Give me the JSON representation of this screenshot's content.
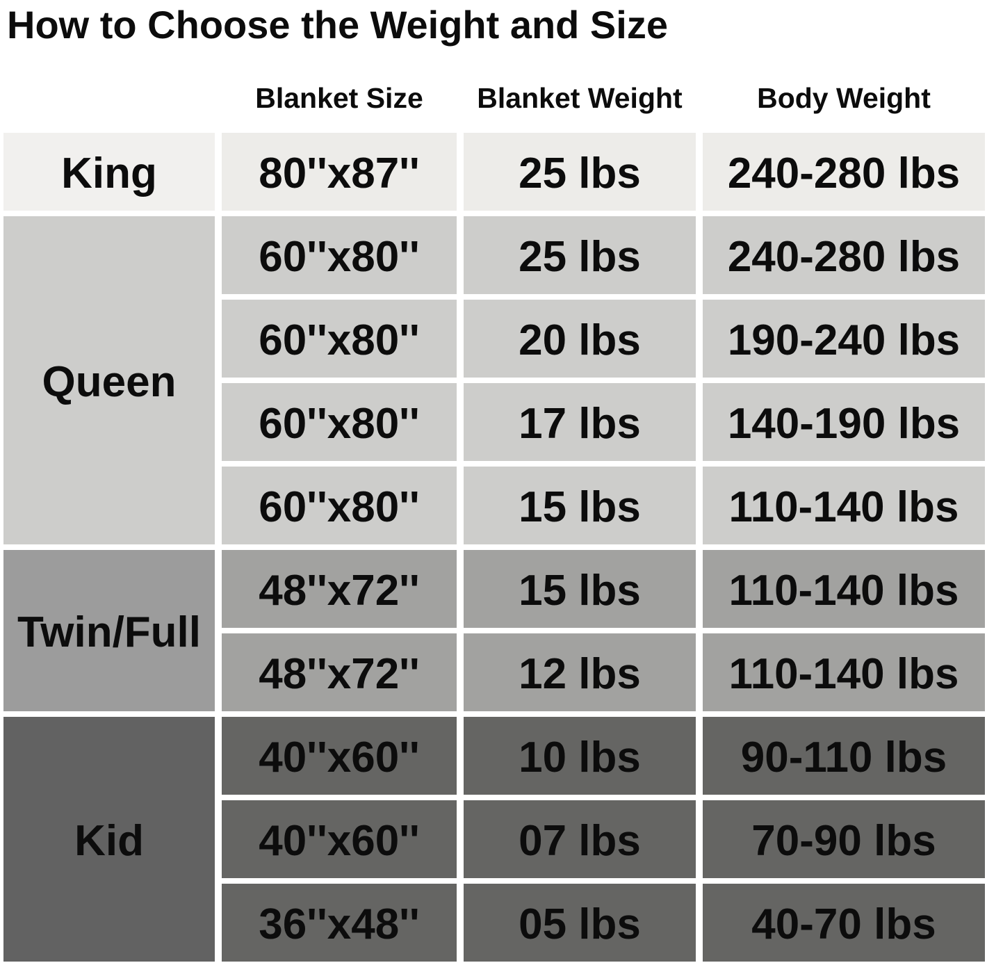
{
  "title": "How to Choose the Weight and Size",
  "columns": [
    "Blanket Size",
    "Blanket Weight",
    "Body Weight"
  ],
  "text_color": "#0c0c0c",
  "groups": [
    {
      "category": "King",
      "label_color": "#f1f0ee",
      "cell_color": "#edece9",
      "rows": [
        {
          "blanket_size": "80''x87''",
          "blanket_weight": "25 lbs",
          "body_weight": "240-280 lbs"
        }
      ]
    },
    {
      "category": "Queen",
      "label_color": "#cdcdcb",
      "cell_color": "#cdcdcb",
      "rows": [
        {
          "blanket_size": "60''x80''",
          "blanket_weight": "25 lbs",
          "body_weight": "240-280 lbs"
        },
        {
          "blanket_size": "60''x80''",
          "blanket_weight": "20 lbs",
          "body_weight": "190-240 lbs"
        },
        {
          "blanket_size": "60''x80''",
          "blanket_weight": "17 lbs",
          "body_weight": "140-190 lbs"
        },
        {
          "blanket_size": "60''x80''",
          "blanket_weight": "15 lbs",
          "body_weight": "110-140 lbs"
        }
      ]
    },
    {
      "category": "Twin/Full",
      "label_color": "#9c9c9c",
      "cell_color": "#a2a2a0",
      "rows": [
        {
          "blanket_size": "48''x72''",
          "blanket_weight": "15 lbs",
          "body_weight": "110-140 lbs"
        },
        {
          "blanket_size": "48''x72''",
          "blanket_weight": "12 lbs",
          "body_weight": "110-140 lbs"
        }
      ]
    },
    {
      "category": "Kid",
      "label_color": "#626262",
      "cell_color": "#656563",
      "rows": [
        {
          "blanket_size": "40''x60''",
          "blanket_weight": "10 lbs",
          "body_weight": "90-110 lbs"
        },
        {
          "blanket_size": "40''x60''",
          "blanket_weight": "07 lbs",
          "body_weight": "70-90 lbs"
        },
        {
          "blanket_size": "36''x48''",
          "blanket_weight": "05 lbs",
          "body_weight": "40-70 lbs"
        }
      ]
    }
  ],
  "chart_data": {
    "type": "table",
    "title": "How to Choose the Weight and Size",
    "columns": [
      "",
      "Blanket Size",
      "Blanket Weight",
      "Body Weight"
    ],
    "rows": [
      [
        "King",
        "80''x87''",
        "25 lbs",
        "240-280 lbs"
      ],
      [
        "Queen",
        "60''x80''",
        "25 lbs",
        "240-280 lbs"
      ],
      [
        "Queen",
        "60''x80''",
        "20 lbs",
        "190-240 lbs"
      ],
      [
        "Queen",
        "60''x80''",
        "17 lbs",
        "140-190 lbs"
      ],
      [
        "Queen",
        "60''x80''",
        "15 lbs",
        "110-140 lbs"
      ],
      [
        "Twin/Full",
        "48''x72''",
        "15 lbs",
        "110-140 lbs"
      ],
      [
        "Twin/Full",
        "48''x72''",
        "12 lbs",
        "110-140 lbs"
      ],
      [
        "Kid",
        "40''x60''",
        "10 lbs",
        "90-110 lbs"
      ],
      [
        "Kid",
        "40''x60''",
        "07 lbs",
        "70-90 lbs"
      ],
      [
        "Kid",
        "36''x48''",
        "05 lbs",
        "40-70 lbs"
      ]
    ]
  }
}
